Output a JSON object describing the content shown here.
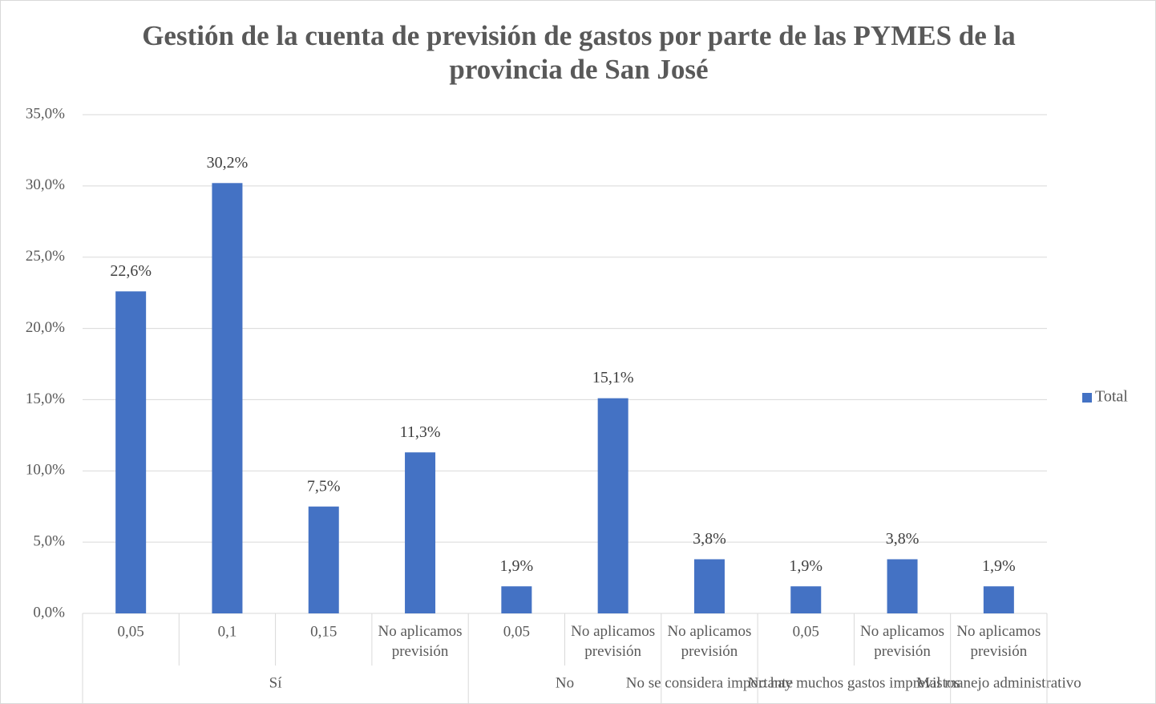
{
  "chart_data": {
    "type": "bar",
    "title": "Gestión de la cuenta de previsión de gastos por parte de las PYMES de la provincia de San José",
    "categories": [
      "0,05",
      "0,1",
      "0,15",
      "No aplicamos previsión",
      "0,05",
      "No aplicamos previsión",
      "No aplicamos previsión",
      "0,05",
      "No aplicamos previsión",
      "No aplicamos previsión"
    ],
    "category_groups": [
      "Sí",
      "Sí",
      "Sí",
      "Sí",
      "No",
      "No",
      "No se considera importante",
      "No hay muchos gastos imprevistos",
      "No hay muchos gastos imprevistos",
      "Mal manejo administrativo"
    ],
    "series": [
      {
        "name": "Total",
        "color": "#4472c4",
        "values": [
          22.6,
          30.2,
          7.5,
          11.3,
          1.9,
          15.1,
          3.8,
          1.9,
          3.8,
          1.9
        ],
        "value_labels": [
          "22,6%",
          "30,2%",
          "7,5%",
          "11,3%",
          "1,9%",
          "15,1%",
          "3,8%",
          "1,9%",
          "3,8%",
          "1,9%"
        ]
      }
    ],
    "ylim": [
      0,
      35
    ],
    "yticks": [
      {
        "value": 0,
        "label": "0,0%"
      },
      {
        "value": 5,
        "label": "5,0%"
      },
      {
        "value": 10,
        "label": "10,0%"
      },
      {
        "value": 15,
        "label": "15,0%"
      },
      {
        "value": 20,
        "label": "20,0%"
      },
      {
        "value": 25,
        "label": "25,0%"
      },
      {
        "value": 30,
        "label": "30,0%"
      },
      {
        "value": 35,
        "label": "35,0%"
      }
    ],
    "grid": true,
    "legend": "right"
  }
}
